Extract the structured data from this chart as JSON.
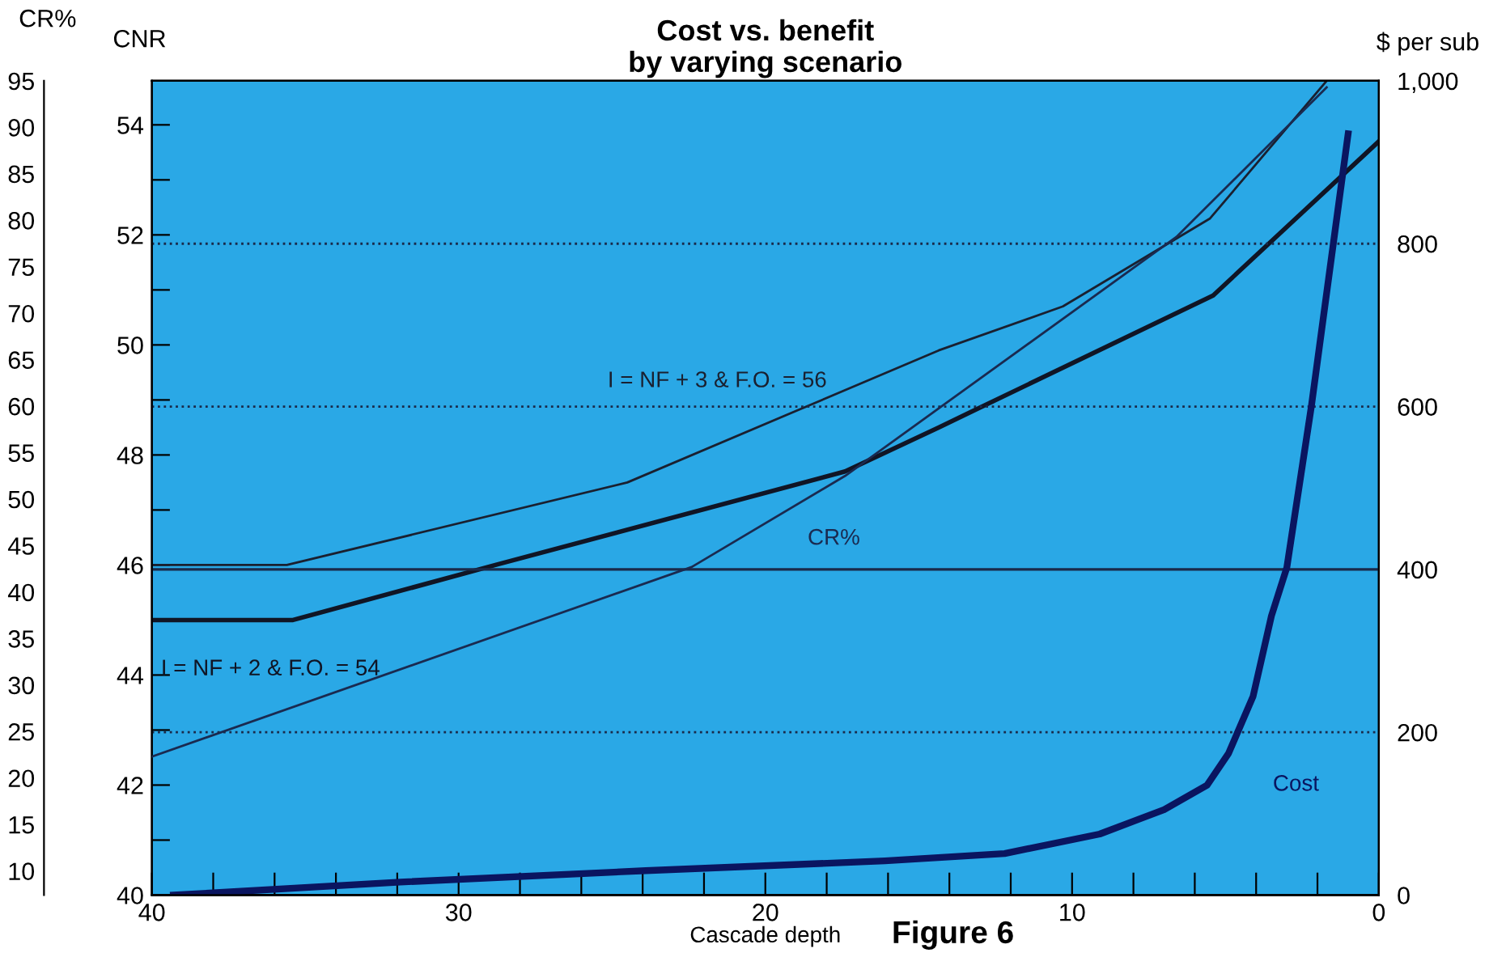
{
  "chart_data": {
    "type": "line",
    "title": "Cost vs. benefit\nby varying scenario",
    "xlabel": "Cascade depth",
    "ylabel": "CNR",
    "y2label": "$ per sub",
    "y3label": "CR%",
    "annotations": [
      "Figure 6"
    ],
    "xlim": [
      40,
      0
    ],
    "xticks": [
      40,
      {
        "value": 38,
        "label": null
      },
      {
        "value": 36,
        "label": null
      },
      {
        "value": 34,
        "label": null
      },
      {
        "value": 32,
        "label": null
      },
      30,
      {
        "value": 28,
        "label": null
      },
      {
        "value": 26,
        "label": null
      },
      {
        "value": 24,
        "label": null
      },
      {
        "value": 22,
        "label": null
      },
      20,
      {
        "value": 18,
        "label": null
      },
      {
        "value": 16,
        "label": null
      },
      {
        "value": 14,
        "label": null
      },
      {
        "value": 12,
        "label": null
      },
      10,
      {
        "value": 8,
        "label": null
      },
      {
        "value": 6,
        "label": null
      },
      {
        "value": 4,
        "label": null
      },
      {
        "value": 2,
        "label": null
      },
      0
    ],
    "ylim": [
      40,
      54.8
    ],
    "yticks": [
      40,
      {
        "value": 41,
        "label": null
      },
      42,
      {
        "value": 43,
        "label": null
      },
      44,
      {
        "value": 45,
        "label": null
      },
      46,
      {
        "value": 47,
        "label": null
      },
      48,
      {
        "value": 49,
        "label": null
      },
      50,
      {
        "value": 51,
        "label": null
      },
      52,
      {
        "value": 53,
        "label": null
      },
      54
    ],
    "y2lim": [
      0,
      1000
    ],
    "y2ticks": [
      0,
      200,
      400,
      600,
      800,
      {
        "value": 1000,
        "label": "1,000"
      }
    ],
    "y3lim": [
      7.4,
      95
    ],
    "y3ticks": [
      10,
      15,
      20,
      25,
      30,
      35,
      40,
      45,
      50,
      55,
      60,
      65,
      70,
      75,
      80,
      85,
      90,
      95
    ],
    "ref_lines": [
      {
        "axis": "y2",
        "value": 200,
        "line_style": "dotted",
        "color": "#1a2a4a"
      },
      {
        "axis": "y2",
        "value": 400,
        "line_style": "solid",
        "color": "#1a2a4a"
      },
      {
        "axis": "y2",
        "value": 600,
        "line_style": "dotted",
        "color": "#1a2a4a"
      },
      {
        "axis": "y2",
        "value": 800,
        "line_style": "dotted",
        "color": "#1a2a4a"
      }
    ],
    "grid": false,
    "marker": "none",
    "line_style": "solid",
    "series": [
      {
        "name": "I = NF + 3 & F.O. = 56",
        "color": "#1a2030",
        "axis": "y",
        "x": [
          40,
          35.6,
          24.5,
          14.35,
          10.3,
          5.5,
          1.7
        ],
        "values": [
          46,
          46,
          47.5,
          49.9,
          50.7,
          52.3,
          54.8
        ]
      },
      {
        "name": "I = NF + 2 & F.O. = 54",
        "color": "#101525",
        "axis": "y",
        "x": [
          40,
          35.4,
          28.8,
          17.4,
          14.35,
          5.4,
          0
        ],
        "values": [
          45,
          45,
          46,
          47.7,
          48.5,
          50.9,
          53.7
        ]
      },
      {
        "name": "CR%",
        "color": "#1a2a50",
        "axis": "y3",
        "x": [
          40,
          22.4,
          17.4,
          6.6,
          1.7
        ],
        "values": [
          22.3,
          42.7,
          52.5,
          78.2,
          94.3
        ]
      },
      {
        "name": "Cost",
        "color": "#0a1560",
        "axis": "y2",
        "x": [
          39.3,
          31.9,
          23.9,
          16.1,
          12.2,
          9.1,
          7.0,
          5.6,
          4.9,
          4.1,
          3.5,
          3.0,
          2.2,
          1.0
        ],
        "values": [
          0,
          16,
          30,
          42,
          51,
          75,
          105,
          135,
          174,
          244,
          343,
          402,
          600,
          935
        ]
      }
    ]
  }
}
